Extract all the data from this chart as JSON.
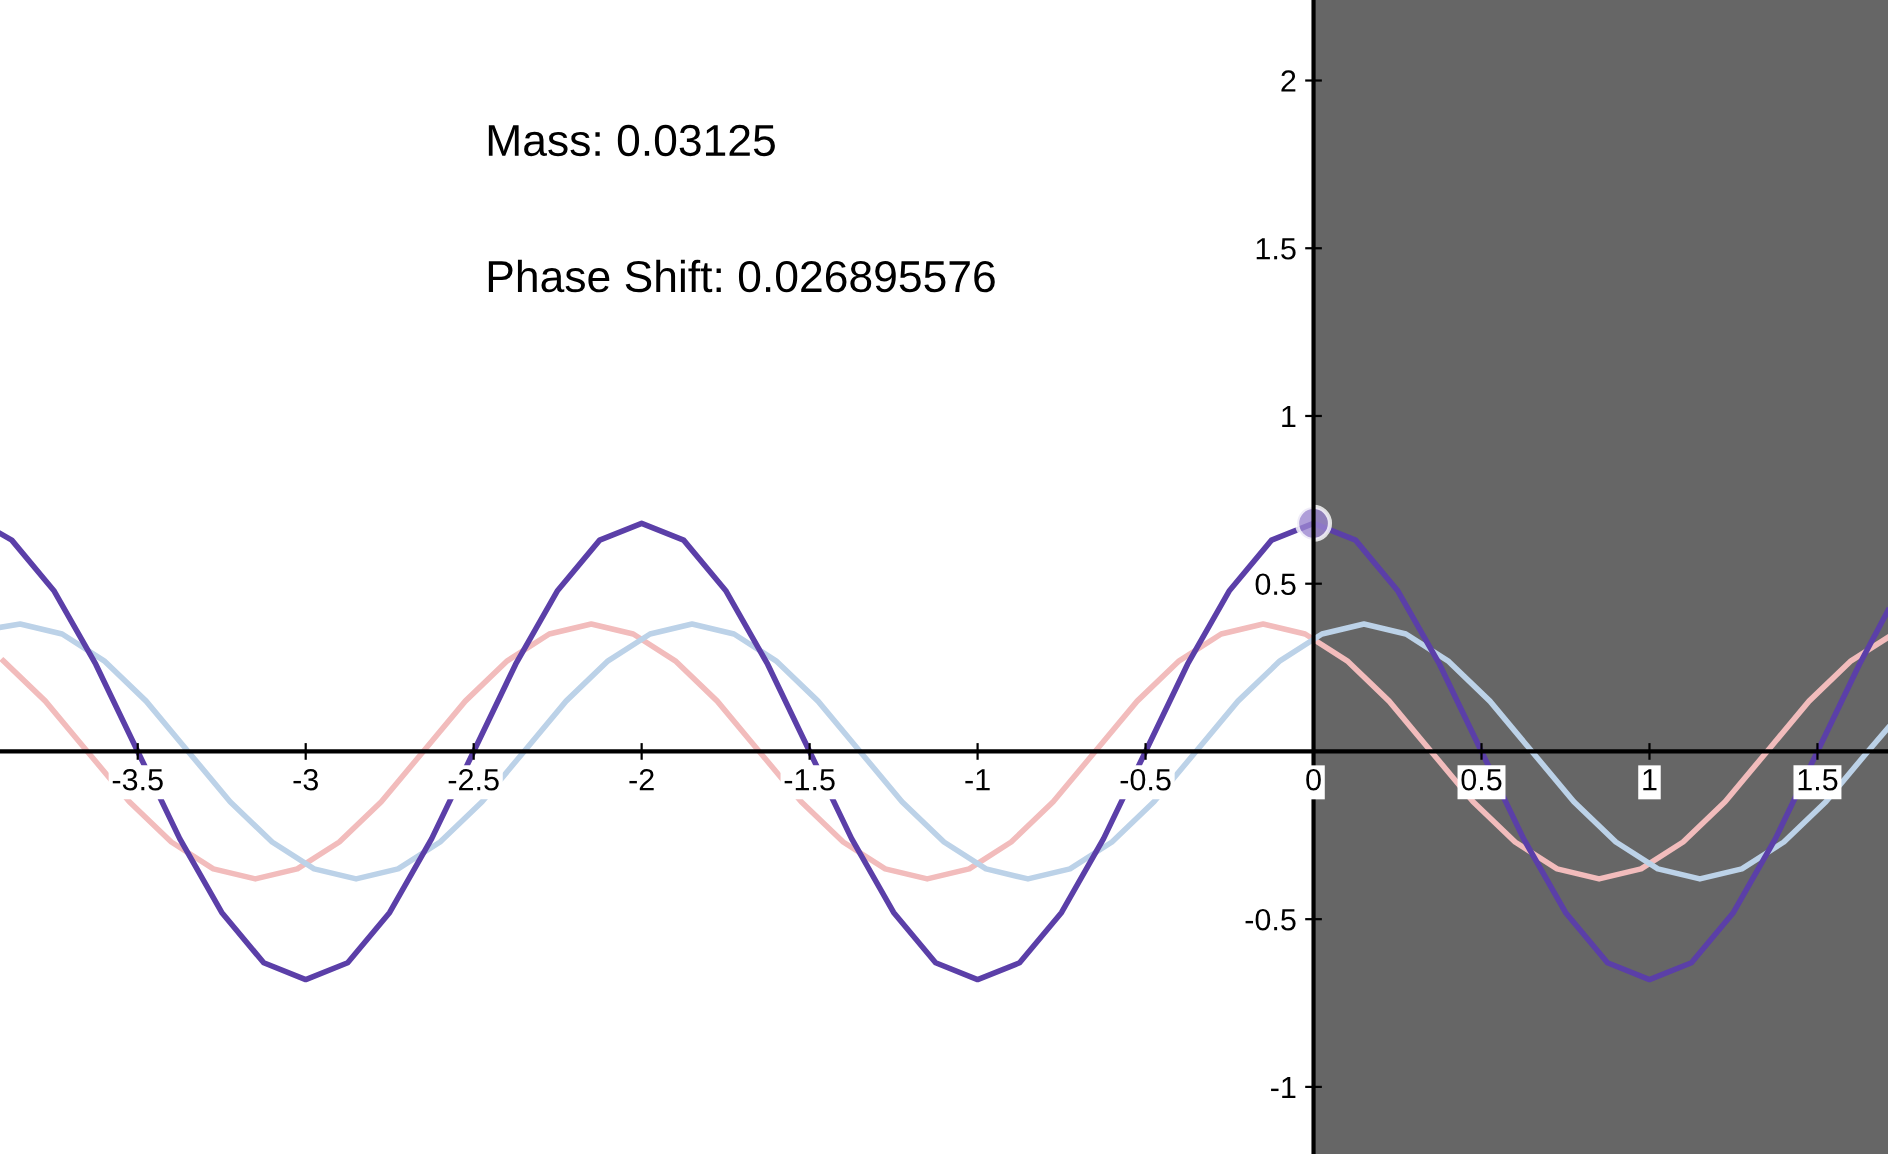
{
  "chart_data": {
    "type": "line",
    "series": [
      {
        "color": "#f2bcbc",
        "x": [
          -3.9,
          -3.775,
          -3.65,
          -3.525,
          -3.4,
          -3.275,
          -3.15,
          -3.025,
          -2.9,
          -2.775,
          -2.65,
          -2.525,
          -2.4,
          -2.275,
          -2.15,
          -2.025,
          -1.9,
          -1.775,
          -1.65,
          -1.525,
          -1.4,
          -1.275,
          -1.15,
          -1.025,
          -0.9,
          -0.775,
          -0.65,
          -0.525,
          -0.4,
          -0.275,
          -0.15,
          -0.025,
          0.1,
          0.225,
          0.35,
          0.475,
          0.6,
          0.725,
          0.85,
          0.975,
          1.1,
          1.225,
          1.35,
          1.475,
          1.6,
          1.71
        ],
        "values": [
          0.27,
          0.15,
          0,
          -0.15,
          -0.27,
          -0.35,
          -0.38,
          -0.35,
          -0.27,
          -0.15,
          0,
          0.15,
          0.27,
          0.35,
          0.38,
          0.35,
          0.27,
          0.15,
          0,
          -0.15,
          -0.27,
          -0.35,
          -0.38,
          -0.35,
          -0.27,
          -0.15,
          0,
          0.15,
          0.27,
          0.35,
          0.38,
          0.35,
          0.27,
          0.15,
          0,
          -0.15,
          -0.27,
          -0.35,
          -0.38,
          -0.35,
          -0.27,
          -0.15,
          0,
          0.15,
          0.27,
          0.34
        ]
      },
      {
        "color": "#bcd2e8",
        "x": [
          -3.91,
          -3.85,
          -3.725,
          -3.6,
          -3.475,
          -3.35,
          -3.225,
          -3.1,
          -2.975,
          -2.85,
          -2.725,
          -2.6,
          -2.475,
          -2.35,
          -2.225,
          -2.1,
          -1.975,
          -1.85,
          -1.725,
          -1.6,
          -1.475,
          -1.35,
          -1.225,
          -1.1,
          -0.975,
          -0.85,
          -0.725,
          -0.6,
          -0.475,
          -0.35,
          -0.225,
          -0.1,
          0.025,
          0.15,
          0.275,
          0.4,
          0.525,
          0.65,
          0.775,
          0.9,
          1.025,
          1.15,
          1.275,
          1.4,
          1.525,
          1.65,
          1.71
        ],
        "values": [
          0.37,
          0.38,
          0.35,
          0.27,
          0.15,
          0,
          -0.15,
          -0.27,
          -0.35,
          -0.38,
          -0.35,
          -0.27,
          -0.15,
          0,
          0.15,
          0.27,
          0.35,
          0.38,
          0.35,
          0.27,
          0.15,
          0,
          -0.15,
          -0.27,
          -0.35,
          -0.38,
          -0.35,
          -0.27,
          -0.15,
          0,
          0.15,
          0.27,
          0.35,
          0.38,
          0.35,
          0.27,
          0.15,
          0,
          -0.15,
          -0.27,
          -0.35,
          -0.38,
          -0.35,
          -0.27,
          -0.15,
          0,
          0.07
        ]
      },
      {
        "color": "#5b3fa8",
        "x": [
          -3.91,
          -3.875,
          -3.75,
          -3.625,
          -3.5,
          -3.375,
          -3.25,
          -3.125,
          -3,
          -2.875,
          -2.75,
          -2.625,
          -2.5,
          -2.375,
          -2.25,
          -2.125,
          -2,
          -1.875,
          -1.75,
          -1.625,
          -1.5,
          -1.375,
          -1.25,
          -1.125,
          -1,
          -0.875,
          -0.75,
          -0.625,
          -0.5,
          -0.375,
          -0.25,
          -0.125,
          0,
          0.125,
          0.25,
          0.375,
          0.5,
          0.625,
          0.75,
          0.875,
          1,
          1.125,
          1.25,
          1.375,
          1.5,
          1.625,
          1.71
        ],
        "values": [
          0.65,
          0.63,
          0.48,
          0.26,
          0,
          -0.26,
          -0.48,
          -0.63,
          -0.68,
          -0.63,
          -0.48,
          -0.26,
          0,
          0.26,
          0.48,
          0.63,
          0.68,
          0.63,
          0.48,
          0.26,
          0,
          -0.26,
          -0.48,
          -0.63,
          -0.68,
          -0.63,
          -0.48,
          -0.26,
          0,
          0.26,
          0.48,
          0.63,
          0.68,
          0.63,
          0.48,
          0.26,
          0,
          -0.26,
          -0.48,
          -0.63,
          -0.68,
          -0.63,
          -0.48,
          -0.26,
          0,
          0.26,
          0.42
        ]
      },
      {
        "type": "scatter",
        "color": "#9b86d0",
        "x": [
          0
        ],
        "values": [
          0.68
        ],
        "marker": "circle"
      }
    ],
    "xlim": [
      -3.91,
      1.71
    ],
    "ylim": [
      -1.2,
      2.24
    ],
    "xticks": [
      -3.5,
      -3,
      -2.5,
      -2,
      -1.5,
      -1,
      -0.5,
      0,
      0.5,
      1,
      1.5
    ],
    "yticks": [
      -1,
      -0.5,
      0.5,
      1,
      1.5,
      2
    ],
    "bands": [
      {
        "axis": "x",
        "from": 0,
        "to": 1.71,
        "color": "#666666"
      }
    ],
    "annotations": [
      "Mass: 0.03125",
      "Phase Shift: 0.026895576"
    ],
    "grid": false,
    "legend": false
  }
}
